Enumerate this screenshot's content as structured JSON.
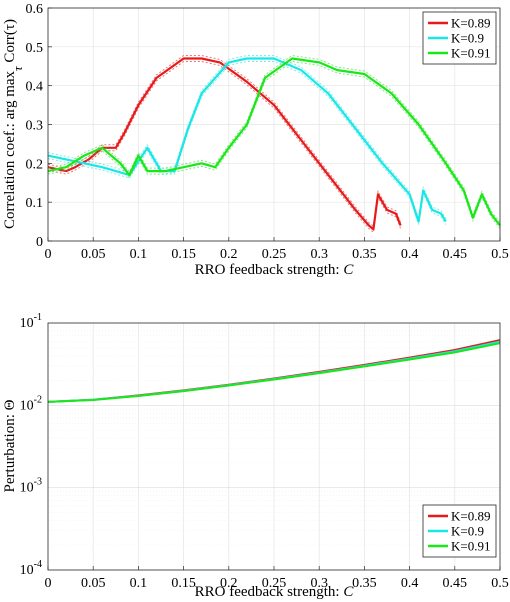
{
  "chart_data": [
    {
      "type": "line",
      "xlabel": "RRO feedback strength: ",
      "xlabel_var": "C",
      "ylabel": "Correlation coef.: arg max",
      "ylabel_sub": "τ",
      "ylabel_tail": " Corr(τ)",
      "xlim": [
        0,
        0.5
      ],
      "ylim": [
        0,
        0.6
      ],
      "x_ticks": [
        0,
        0.05,
        0.1,
        0.15,
        0.2,
        0.25,
        0.3,
        0.35,
        0.4,
        0.45,
        0.5
      ],
      "x_tick_labels": [
        "0",
        "0.05",
        "0.1",
        "0.15",
        "0.2",
        "0.25",
        "0.3",
        "0.35",
        "0.4",
        "0.45",
        "0.5"
      ],
      "y_ticks": [
        0,
        0.1,
        0.2,
        0.3,
        0.4,
        0.5,
        0.6
      ],
      "y_tick_labels": [
        "0",
        "0.1",
        "0.2",
        "0.3",
        "0.4",
        "0.5",
        "0.6"
      ],
      "grid": true,
      "legend_position": "top-right",
      "series": [
        {
          "name": "K=0.89",
          "color": "#e61a1a",
          "x": [
            0,
            0.02,
            0.03,
            0.045,
            0.06,
            0.075,
            0.085,
            0.1,
            0.12,
            0.15,
            0.17,
            0.19,
            0.22,
            0.25,
            0.28,
            0.3,
            0.32,
            0.34,
            0.355,
            0.36,
            0.365,
            0.375,
            0.385,
            0.39
          ],
          "y": [
            0.19,
            0.18,
            0.19,
            0.21,
            0.24,
            0.24,
            0.28,
            0.35,
            0.42,
            0.47,
            0.47,
            0.46,
            0.41,
            0.35,
            0.26,
            0.2,
            0.14,
            0.08,
            0.04,
            0.03,
            0.12,
            0.08,
            0.07,
            0.04
          ]
        },
        {
          "name": "K=0.9",
          "color": "#1ae6e6",
          "x": [
            0,
            0.02,
            0.04,
            0.06,
            0.075,
            0.09,
            0.11,
            0.125,
            0.14,
            0.155,
            0.17,
            0.2,
            0.22,
            0.25,
            0.28,
            0.31,
            0.34,
            0.37,
            0.4,
            0.41,
            0.415,
            0.425,
            0.435,
            0.44
          ],
          "y": [
            0.22,
            0.21,
            0.2,
            0.19,
            0.18,
            0.17,
            0.24,
            0.18,
            0.18,
            0.29,
            0.38,
            0.46,
            0.47,
            0.47,
            0.44,
            0.38,
            0.29,
            0.2,
            0.12,
            0.05,
            0.13,
            0.08,
            0.07,
            0.05
          ]
        },
        {
          "name": "K=0.91",
          "color": "#1ae61a",
          "x": [
            0,
            0.02,
            0.04,
            0.06,
            0.08,
            0.09,
            0.1,
            0.11,
            0.13,
            0.15,
            0.17,
            0.185,
            0.2,
            0.22,
            0.24,
            0.27,
            0.3,
            0.32,
            0.35,
            0.38,
            0.41,
            0.44,
            0.46,
            0.47,
            0.48,
            0.49,
            0.5
          ],
          "y": [
            0.18,
            0.19,
            0.22,
            0.24,
            0.2,
            0.17,
            0.22,
            0.18,
            0.18,
            0.19,
            0.2,
            0.19,
            0.24,
            0.3,
            0.42,
            0.47,
            0.46,
            0.44,
            0.43,
            0.38,
            0.3,
            0.2,
            0.13,
            0.06,
            0.12,
            0.07,
            0.04
          ]
        }
      ],
      "legend": {
        "labels": [
          "K=0.89",
          "K=0.9",
          "K=0.91"
        ],
        "colors": [
          "#e61a1a",
          "#1ae6e6",
          "#1ae61a"
        ]
      }
    },
    {
      "type": "line",
      "xlabel": "RRO feedback strength: ",
      "xlabel_var": "C",
      "ylabel": "Perturbation: Θ",
      "xlim": [
        0,
        0.5
      ],
      "ylim": [
        0.0001,
        0.1
      ],
      "y_scale": "log",
      "x_ticks": [
        0,
        0.05,
        0.1,
        0.15,
        0.2,
        0.25,
        0.3,
        0.35,
        0.4,
        0.45,
        0.5
      ],
      "x_tick_labels": [
        "0",
        "0.05",
        "0.1",
        "0.15",
        "0.2",
        "0.25",
        "0.3",
        "0.35",
        "0.4",
        "0.45",
        "0.5"
      ],
      "y_tick_exponents": [
        -4,
        -3,
        -2,
        -1
      ],
      "y_tick_base": "10",
      "grid": true,
      "legend_position": "bottom-right",
      "series": [
        {
          "name": "K=0.89",
          "color": "#e61a1a",
          "x": [
            0,
            0.05,
            0.1,
            0.15,
            0.2,
            0.25,
            0.3,
            0.35,
            0.4,
            0.45,
            0.5
          ],
          "y": [
            0.011,
            0.0117,
            0.0132,
            0.0152,
            0.0178,
            0.0212,
            0.0255,
            0.031,
            0.038,
            0.047,
            0.062
          ]
        },
        {
          "name": "K=0.9",
          "color": "#1ae6e6",
          "x": [
            0,
            0.05,
            0.1,
            0.15,
            0.2,
            0.25,
            0.3,
            0.35,
            0.4,
            0.45,
            0.5
          ],
          "y": [
            0.011,
            0.0117,
            0.0131,
            0.015,
            0.0176,
            0.0209,
            0.025,
            0.0303,
            0.037,
            0.0455,
            0.0595
          ]
        },
        {
          "name": "K=0.91",
          "color": "#1ae61a",
          "x": [
            0,
            0.05,
            0.1,
            0.15,
            0.2,
            0.25,
            0.3,
            0.35,
            0.4,
            0.45,
            0.5
          ],
          "y": [
            0.011,
            0.0116,
            0.013,
            0.0149,
            0.0174,
            0.0206,
            0.0246,
            0.0297,
            0.036,
            0.044,
            0.057
          ]
        }
      ],
      "legend": {
        "labels": [
          "K=0.89",
          "K=0.9",
          "K=0.91"
        ],
        "colors": [
          "#e61a1a",
          "#1ae6e6",
          "#1ae61a"
        ]
      }
    }
  ]
}
